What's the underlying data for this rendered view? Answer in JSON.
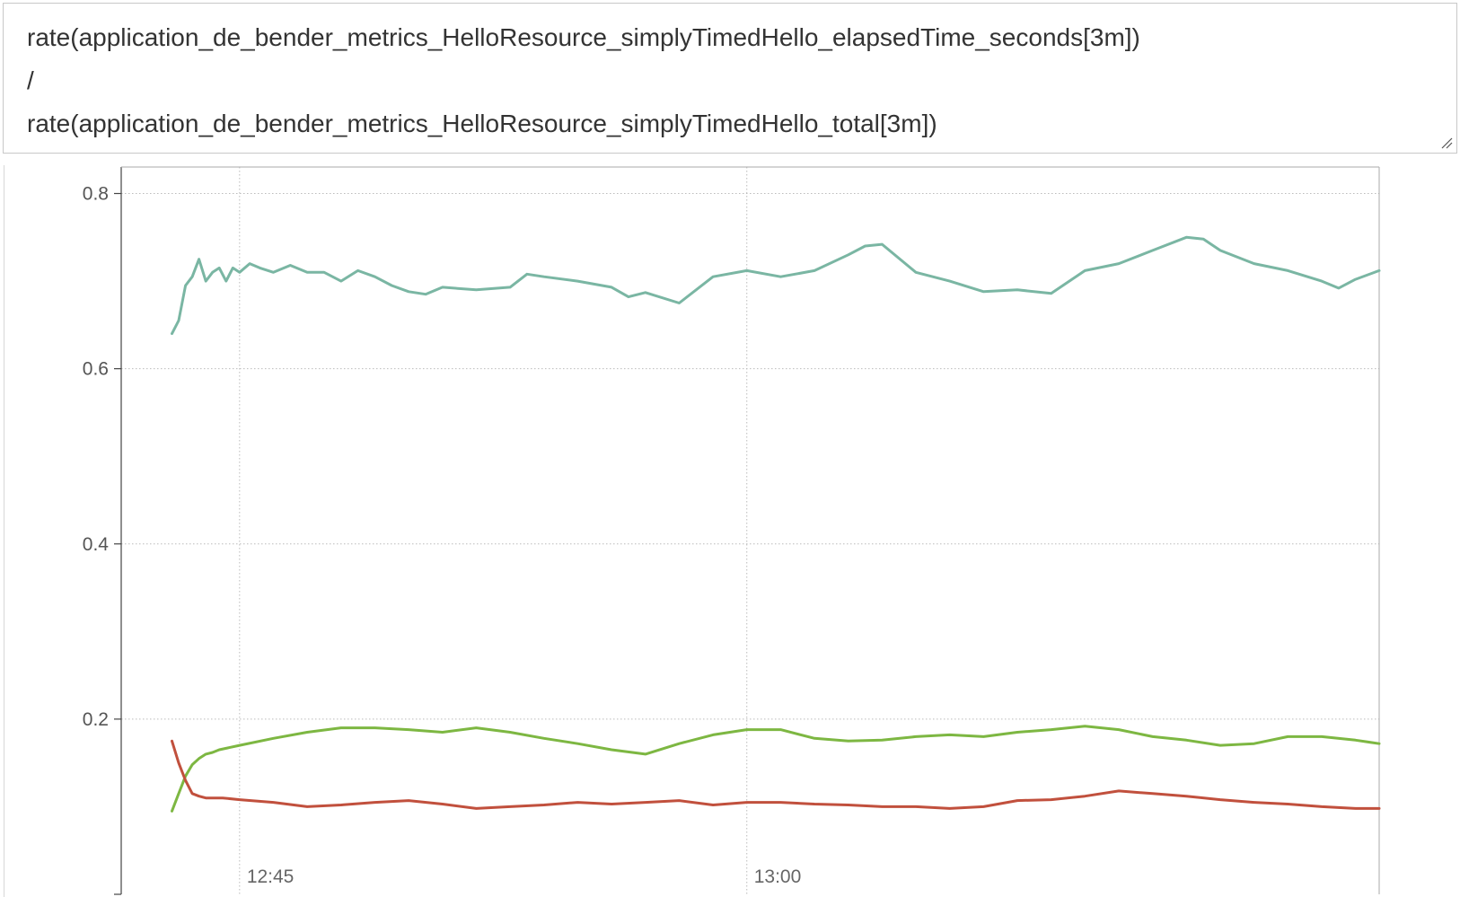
{
  "query": {
    "lines": [
      "rate(application_de_bender_metrics_HelloResource_simplyTimedHello_elapsedTime_seconds[3m])",
      "/",
      "rate(application_de_bender_metrics_HelloResource_simplyTimedHello_total[3m])"
    ]
  },
  "chart_data": {
    "type": "line",
    "title": "",
    "xlabel": "",
    "ylabel": "",
    "x_range_minutes": [
      -3.5,
      33.7
    ],
    "ylim": [
      0.0,
      0.82
    ],
    "y_ticks": [
      {
        "value": 0.2,
        "label": "0.2"
      },
      {
        "value": 0.4,
        "label": "0.4"
      },
      {
        "value": 0.6,
        "label": "0.6"
      },
      {
        "value": 0.8,
        "label": "0.8"
      }
    ],
    "x_ticks": [
      {
        "value": 0,
        "label": "12:45"
      },
      {
        "value": 15,
        "label": "13:00"
      }
    ],
    "x_unit": "minutes after 12:45",
    "grid": true,
    "legend": "none",
    "series": [
      {
        "color": "#7ab6a3",
        "x": [
          -2.0,
          -1.8,
          -1.6,
          -1.4,
          -1.2,
          -1.0,
          -0.8,
          -0.6,
          -0.4,
          -0.2,
          0.0,
          0.3,
          0.6,
          1.0,
          1.5,
          2.0,
          2.5,
          3.0,
          3.5,
          4.0,
          4.5,
          5.0,
          5.5,
          6.0,
          7.0,
          8.0,
          8.5,
          9.0,
          10.0,
          11.0,
          11.5,
          12.0,
          13.0,
          14.0,
          15.0,
          16.0,
          17.0,
          18.0,
          18.5,
          19.0,
          20.0,
          21.0,
          22.0,
          23.0,
          24.0,
          25.0,
          26.0,
          27.0,
          28.0,
          28.5,
          29.0,
          30.0,
          31.0,
          32.0,
          32.5,
          33.0,
          33.7
        ],
        "values": [
          0.64,
          0.655,
          0.695,
          0.705,
          0.725,
          0.7,
          0.71,
          0.715,
          0.7,
          0.715,
          0.71,
          0.72,
          0.715,
          0.71,
          0.718,
          0.71,
          0.71,
          0.7,
          0.712,
          0.705,
          0.695,
          0.688,
          0.685,
          0.693,
          0.69,
          0.693,
          0.708,
          0.705,
          0.7,
          0.693,
          0.682,
          0.687,
          0.675,
          0.705,
          0.712,
          0.705,
          0.712,
          0.73,
          0.74,
          0.742,
          0.71,
          0.7,
          0.688,
          0.69,
          0.686,
          0.712,
          0.72,
          0.735,
          0.75,
          0.748,
          0.735,
          0.72,
          0.712,
          0.7,
          0.692,
          0.702,
          0.712
        ]
      },
      {
        "color": "#7db742",
        "x": [
          -2.0,
          -1.8,
          -1.6,
          -1.4,
          -1.2,
          -1.0,
          -0.8,
          -0.6,
          0.0,
          1.0,
          2.0,
          3.0,
          4.0,
          5.0,
          6.0,
          7.0,
          8.0,
          9.0,
          10.0,
          11.0,
          12.0,
          13.0,
          14.0,
          15.0,
          16.0,
          17.0,
          18.0,
          19.0,
          20.0,
          21.0,
          22.0,
          23.0,
          24.0,
          25.0,
          26.0,
          27.0,
          28.0,
          29.0,
          30.0,
          31.0,
          32.0,
          33.0,
          33.7
        ],
        "values": [
          0.095,
          0.115,
          0.135,
          0.148,
          0.155,
          0.16,
          0.162,
          0.165,
          0.17,
          0.178,
          0.185,
          0.19,
          0.19,
          0.188,
          0.185,
          0.19,
          0.185,
          0.178,
          0.172,
          0.165,
          0.16,
          0.172,
          0.182,
          0.188,
          0.188,
          0.178,
          0.175,
          0.176,
          0.18,
          0.182,
          0.18,
          0.185,
          0.188,
          0.192,
          0.188,
          0.18,
          0.176,
          0.17,
          0.172,
          0.18,
          0.18,
          0.176,
          0.172
        ]
      },
      {
        "color": "#c1503d",
        "x": [
          -2.0,
          -1.8,
          -1.6,
          -1.4,
          -1.2,
          -1.0,
          -0.5,
          0.0,
          1.0,
          2.0,
          3.0,
          4.0,
          5.0,
          6.0,
          7.0,
          8.0,
          9.0,
          10.0,
          11.0,
          12.0,
          13.0,
          14.0,
          15.0,
          16.0,
          17.0,
          18.0,
          19.0,
          20.0,
          21.0,
          22.0,
          23.0,
          24.0,
          25.0,
          26.0,
          27.0,
          28.0,
          29.0,
          30.0,
          31.0,
          32.0,
          33.0,
          33.7
        ],
        "values": [
          0.175,
          0.15,
          0.13,
          0.115,
          0.112,
          0.11,
          0.11,
          0.108,
          0.105,
          0.1,
          0.102,
          0.105,
          0.107,
          0.103,
          0.098,
          0.1,
          0.102,
          0.105,
          0.103,
          0.105,
          0.107,
          0.102,
          0.105,
          0.105,
          0.103,
          0.102,
          0.1,
          0.1,
          0.098,
          0.1,
          0.107,
          0.108,
          0.112,
          0.118,
          0.115,
          0.112,
          0.108,
          0.105,
          0.103,
          0.1,
          0.098,
          0.098
        ]
      }
    ]
  }
}
